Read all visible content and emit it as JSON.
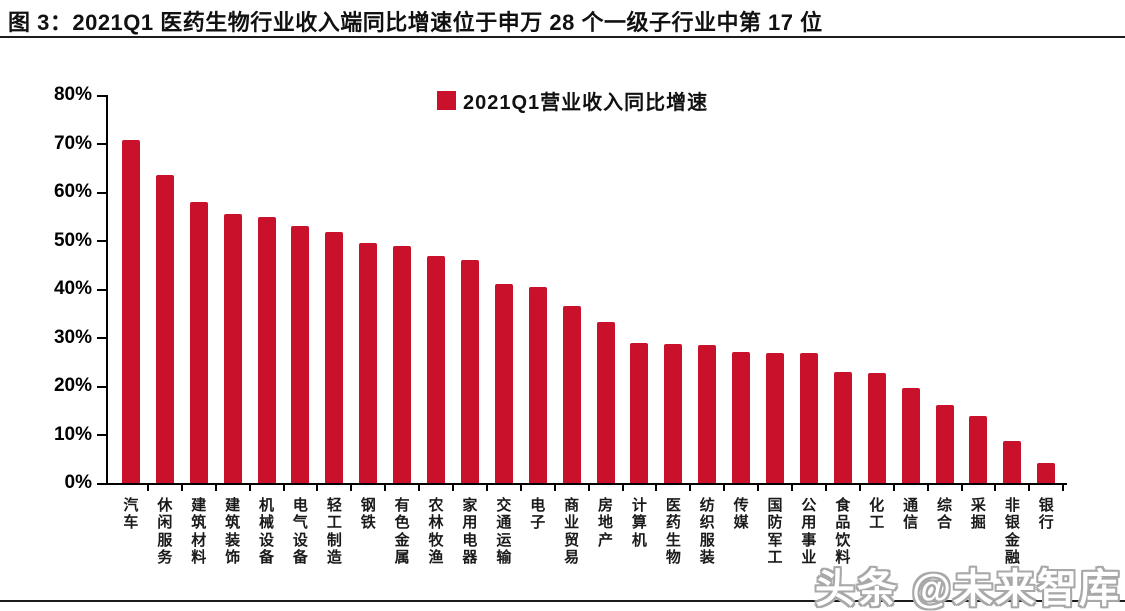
{
  "figure": {
    "title": "图 3：2021Q1 医药生物行业收入端同比增速位于申万 28 个一级子行业中第 17 位",
    "watermark": "头条 @未来智库"
  },
  "chart_data": {
    "type": "bar",
    "title": "",
    "legend_label": "2021Q1营业收入同比增速",
    "legend_position": "top-center-inside",
    "categories": [
      "汽车",
      "休闲服务",
      "建筑材料",
      "建筑装饰",
      "机械设备",
      "电气设备",
      "轻工制造",
      "钢铁",
      "有色金属",
      "农林牧渔",
      "家用电器",
      "交通运输",
      "电子",
      "商业贸易",
      "房地产",
      "计算机",
      "医药生物",
      "纺织服装",
      "传媒",
      "国防军工",
      "公用事业",
      "食品饮料",
      "化工",
      "通信",
      "综合",
      "采掘",
      "非银金融",
      "银行"
    ],
    "values": [
      70.8,
      63.5,
      58.0,
      55.4,
      54.8,
      52.9,
      51.7,
      49.4,
      48.9,
      46.9,
      46.0,
      41.1,
      40.4,
      36.5,
      33.2,
      28.9,
      28.6,
      28.4,
      27.0,
      26.9,
      26.8,
      22.9,
      22.6,
      19.6,
      16.1,
      13.8,
      8.6,
      4.2
    ],
    "xlabel": "",
    "ylabel": "",
    "ylim": [
      0,
      80
    ],
    "ytick_step": 10,
    "ytick_labels": [
      "0%",
      "10%",
      "20%",
      "30%",
      "40%",
      "50%",
      "60%",
      "70%",
      "80%"
    ],
    "grid": false,
    "bar_color": "#C9112B",
    "axis_color": "#000000"
  }
}
